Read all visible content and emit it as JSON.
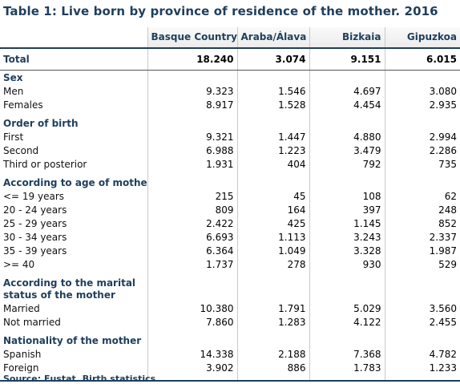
{
  "title": "Table 1: Live born by province of residence of the mother. 2016",
  "columns": [
    "Basque Country",
    "Araba/Álava",
    "Bizkaia",
    "Gipuzkoa"
  ],
  "total": {
    "label": "Total",
    "values": [
      "18.240",
      "3.074",
      "9.151",
      "6.015"
    ]
  },
  "sections": {
    "sex": {
      "title": "Sex",
      "rows": [
        {
          "label": "Men",
          "values": [
            "9.323",
            "1.546",
            "4.697",
            "3.080"
          ]
        },
        {
          "label": "Females",
          "values": [
            "8.917",
            "1.528",
            "4.454",
            "2.935"
          ]
        }
      ]
    },
    "order": {
      "title": "Order of birth",
      "rows": [
        {
          "label": "First",
          "values": [
            "9.321",
            "1.447",
            "4.880",
            "2.994"
          ]
        },
        {
          "label": "Second",
          "values": [
            "6.988",
            "1.223",
            "3.479",
            "2.286"
          ]
        },
        {
          "label": "Third or posterior",
          "values": [
            "1.931",
            "404",
            "792",
            "735"
          ]
        }
      ]
    },
    "age": {
      "title": "According to age of mother",
      "rows": [
        {
          "label": "<= 19 years",
          "values": [
            "215",
            "45",
            "108",
            "62"
          ]
        },
        {
          "label": "20 - 24 years",
          "values": [
            "809",
            "164",
            "397",
            "248"
          ]
        },
        {
          "label": "25 - 29 years",
          "values": [
            "2.422",
            "425",
            "1.145",
            "852"
          ]
        },
        {
          "label": "30 - 34 years",
          "values": [
            "6.693",
            "1.113",
            "3.243",
            "2.337"
          ]
        },
        {
          "label": "35 - 39 years",
          "values": [
            "6.364",
            "1.049",
            "3.328",
            "1.987"
          ]
        },
        {
          "label": ">= 40",
          "values": [
            "1.737",
            "278",
            "930",
            "529"
          ]
        }
      ]
    },
    "marital": {
      "title": "According to the marital status of the mother",
      "rows": [
        {
          "label": "Married",
          "values": [
            "10.380",
            "1.791",
            "5.029",
            "3.560"
          ]
        },
        {
          "label": "Not married",
          "values": [
            "7.860",
            "1.283",
            "4.122",
            "2.455"
          ]
        }
      ]
    },
    "nationality": {
      "title": "Nationality of the mother",
      "rows": [
        {
          "label": "Spanish",
          "values": [
            "14.338",
            "2.188",
            "7.368",
            "4.782"
          ]
        },
        {
          "label": "Foreign",
          "values": [
            "3.902",
            "886",
            "1.783",
            "1.233"
          ]
        }
      ]
    }
  },
  "source": "Source: Eustat. Birth statistics"
}
